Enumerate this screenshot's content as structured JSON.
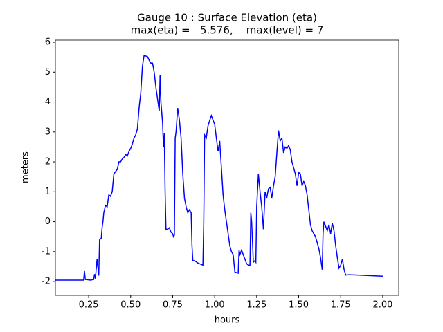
{
  "chart_data": {
    "type": "line",
    "title": [
      "Gauge 10 : Surface Elevation (eta)",
      "max(eta) =   5.576,    max(level) = 7"
    ],
    "x_label": "hours",
    "y_label": "meters",
    "x": [
      0.052,
      0.22,
      0.225,
      0.23,
      0.26,
      0.28,
      0.285,
      0.29,
      0.3,
      0.31,
      0.315,
      0.325,
      0.33,
      0.335,
      0.34,
      0.35,
      0.36,
      0.37,
      0.38,
      0.39,
      0.4,
      0.42,
      0.43,
      0.44,
      0.45,
      0.46,
      0.47,
      0.48,
      0.49,
      0.5,
      0.51,
      0.52,
      0.53,
      0.54,
      0.55,
      0.56,
      0.57,
      0.58,
      0.6,
      0.61,
      0.62,
      0.63,
      0.64,
      0.65,
      0.66,
      0.67,
      0.675,
      0.68,
      0.69,
      0.695,
      0.7,
      0.705,
      0.71,
      0.72,
      0.73,
      0.74,
      0.75,
      0.755,
      0.76,
      0.765,
      0.77,
      0.78,
      0.79,
      0.8,
      0.81,
      0.82,
      0.83,
      0.84,
      0.85,
      0.86,
      0.865,
      0.87,
      0.88,
      0.9,
      0.93,
      0.935,
      0.94,
      0.95,
      0.96,
      0.98,
      0.99,
      1.0,
      1.01,
      1.02,
      1.03,
      1.04,
      1.05,
      1.06,
      1.07,
      1.08,
      1.09,
      1.1,
      1.11,
      1.12,
      1.14,
      1.145,
      1.15,
      1.16,
      1.17,
      1.18,
      1.19,
      1.2,
      1.21,
      1.215,
      1.22,
      1.23,
      1.24,
      1.245,
      1.25,
      1.26,
      1.27,
      1.28,
      1.29,
      1.3,
      1.31,
      1.32,
      1.33,
      1.34,
      1.35,
      1.36,
      1.37,
      1.38,
      1.39,
      1.4,
      1.41,
      1.42,
      1.43,
      1.44,
      1.45,
      1.46,
      1.47,
      1.48,
      1.49,
      1.5,
      1.51,
      1.52,
      1.53,
      1.54,
      1.55,
      1.56,
      1.57,
      1.58,
      1.59,
      1.6,
      1.61,
      1.62,
      1.63,
      1.64,
      1.645,
      1.65,
      1.66,
      1.67,
      1.68,
      1.69,
      1.7,
      1.71,
      1.72,
      1.73,
      1.74,
      1.75,
      1.76,
      1.77,
      1.78,
      1.8,
      1.85,
      2.0
    ],
    "values": [
      -1.95,
      -1.95,
      -1.65,
      -1.93,
      -1.95,
      -1.93,
      -1.75,
      -1.9,
      -1.25,
      -1.8,
      -0.6,
      -0.55,
      -0.2,
      0,
      0.3,
      0.55,
      0.5,
      0.9,
      0.85,
      1.0,
      1.6,
      1.75,
      2.0,
      2.0,
      2.1,
      2.15,
      2.25,
      2.2,
      2.35,
      2.45,
      2.6,
      2.8,
      2.9,
      3.1,
      3.8,
      4.3,
      5.2,
      5.56,
      5.52,
      5.4,
      5.3,
      5.3,
      5.0,
      4.5,
      4.1,
      3.7,
      4.9,
      4.0,
      3.3,
      2.5,
      2.95,
      1.0,
      -0.25,
      -0.25,
      -0.2,
      -0.35,
      -0.4,
      -0.5,
      -0.45,
      2.8,
      3.0,
      3.8,
      3.4,
      2.8,
      1.6,
      0.8,
      0.5,
      0.3,
      0.4,
      0.3,
      -0.8,
      -1.3,
      -1.3,
      -1.38,
      -1.45,
      0,
      2.9,
      2.8,
      3.2,
      3.55,
      3.4,
      3.25,
      2.8,
      2.35,
      2.7,
      1.8,
      0.9,
      0.4,
      0.0,
      -0.4,
      -0.8,
      -1.0,
      -1.1,
      -1.68,
      -1.72,
      -0.95,
      -1.1,
      -0.95,
      -1.1,
      -1.25,
      -1.4,
      -1.45,
      -1.45,
      0.3,
      0.0,
      -1.35,
      -1.3,
      -1.35,
      0.5,
      1.6,
      1.0,
      0.5,
      -0.25,
      1.0,
      0.8,
      1.1,
      1.15,
      0.8,
      1.2,
      1.5,
      2.3,
      3.05,
      2.7,
      2.8,
      2.3,
      2.5,
      2.45,
      2.55,
      2.4,
      2.0,
      1.8,
      1.6,
      1.2,
      1.65,
      1.6,
      1.2,
      1.35,
      1.2,
      0.9,
      0.4,
      -0.1,
      -0.3,
      -0.4,
      -0.5,
      -0.7,
      -0.9,
      -1.2,
      -1.6,
      -0.4,
      0.0,
      -0.15,
      -0.3,
      -0.1,
      -0.4,
      -0.05,
      -0.3,
      -0.8,
      -1.2,
      -1.55,
      -1.45,
      -1.25,
      -1.6,
      -1.78,
      -1.77,
      -1.78,
      -1.82
    ],
    "color": "#0000ff",
    "xlim": [
      0.052,
      2.095
    ],
    "ylim": [
      -2.46,
      6.07
    ],
    "xticks": [
      0.25,
      {
        "value": 0.5,
        "label": "0.50"
      },
      0.75,
      {
        "value": 1.0,
        "label": "1.00"
      },
      1.25,
      {
        "value": 1.5,
        "label": "1.50"
      },
      1.75,
      {
        "value": 2.0,
        "label": "2.00"
      }
    ],
    "yticks": [
      -2,
      -1,
      0,
      1,
      2,
      3,
      4,
      5,
      6
    ]
  }
}
